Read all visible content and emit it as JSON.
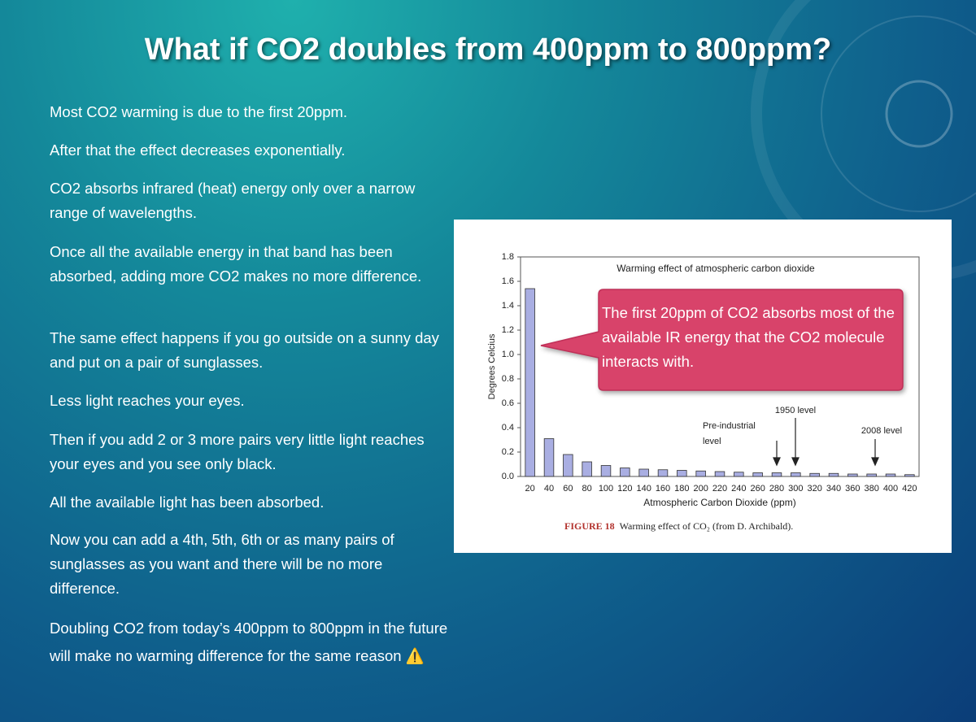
{
  "title": "What if CO2 doubles from 400ppm to 800ppm?",
  "paragraphs": [
    "Most CO2 warming is due to the first 20ppm.",
    "After that the effect decreases exponentially.",
    "CO2 absorbs infrared (heat) energy only over a narrow range of wavelengths.",
    "Once all the available energy in that band has been absorbed, adding more CO2 makes no more difference.",
    "The same effect happens if you go outside on a sunny day and put on a pair of sunglasses.",
    "Less light reaches your eyes.",
    "Then if you add 2 or 3 more pairs very little light reaches your eyes and you see only black.",
    "All the available light has been absorbed.",
    "Now you can add a 4th, 5th, 6th or as many pairs of sunglasses as you want and there will be no more difference.",
    "Doubling CO2 from today’s 400ppm to 800ppm in the future will make no warming difference for the same reason ⚠️"
  ],
  "callout": "The first 20ppm of CO2 absorbs most of the available IR energy that the CO2 molecule interacts with.",
  "caption": {
    "label": "FIGURE 18",
    "text": "Warming effect of CO₂ (from D. Archibald)."
  },
  "chart_data": {
    "type": "bar",
    "title": "Warming effect of atmospheric carbon dioxide",
    "x_label": "Atmospheric Carbon Dioxide (ppm)",
    "y_label": "Degrees Celcius",
    "annotations": [
      [
        "Pre-industrial",
        "level"
      ],
      "1950 level",
      "2008 level"
    ],
    "categories": [
      "20",
      "40",
      "60",
      "80",
      "100",
      "120",
      "140",
      "160",
      "180",
      "200",
      "220",
      "240",
      "260",
      "280",
      "300",
      "320",
      "340",
      "360",
      "380",
      "400",
      "420"
    ],
    "values": [
      1.54,
      0.31,
      0.18,
      0.12,
      0.09,
      0.07,
      0.06,
      0.055,
      0.05,
      0.045,
      0.04,
      0.035,
      0.03,
      0.03,
      0.03,
      0.025,
      0.025,
      0.02,
      0.02,
      0.02,
      0.015
    ],
    "color": "#a9aee2",
    "ylim": [
      0,
      1.8
    ],
    "yticks": [
      {
        "value": 0,
        "label": "0.0"
      },
      0.2,
      0.4,
      0.6,
      0.8,
      {
        "value": 1,
        "label": "1.0"
      },
      1.2,
      1.4,
      1.6,
      1.8
    ]
  }
}
